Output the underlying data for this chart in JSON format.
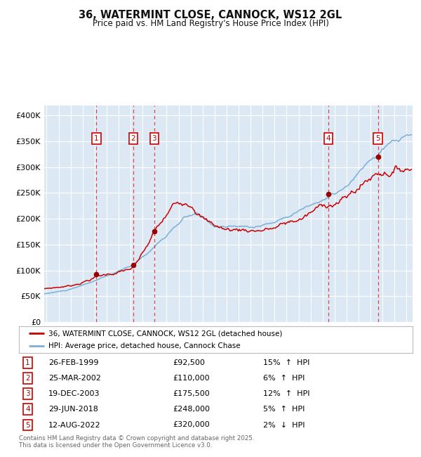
{
  "title_line1": "36, WATERMINT CLOSE, CANNOCK, WS12 2GL",
  "title_line2": "Price paid vs. HM Land Registry's House Price Index (HPI)",
  "ylim": [
    0,
    420000
  ],
  "yticks": [
    0,
    50000,
    100000,
    150000,
    200000,
    250000,
    300000,
    350000,
    400000
  ],
  "ytick_labels": [
    "£0",
    "£50K",
    "£100K",
    "£150K",
    "£200K",
    "£250K",
    "£300K",
    "£350K",
    "£400K"
  ],
  "xlim_start": 1994.8,
  "xlim_end": 2025.5,
  "plot_bg_color": "#dce9f5",
  "fig_bg_color": "#ffffff",
  "grid_color": "#ffffff",
  "red_line_color": "#cc0000",
  "blue_line_color": "#7bafd4",
  "dashed_line_color": "#dd3333",
  "sale_marker_color": "#990000",
  "transactions": [
    {
      "num": 1,
      "date_dec": 1999.15,
      "price": 92500,
      "pct": "15%",
      "dir": "↑",
      "date_str": "26-FEB-1999"
    },
    {
      "num": 2,
      "date_dec": 2002.23,
      "price": 110000,
      "pct": "6%",
      "dir": "↑",
      "date_str": "25-MAR-2002"
    },
    {
      "num": 3,
      "date_dec": 2003.97,
      "price": 175500,
      "pct": "12%",
      "dir": "↑",
      "date_str": "19-DEC-2003"
    },
    {
      "num": 4,
      "date_dec": 2018.49,
      "price": 248000,
      "pct": "5%",
      "dir": "↑",
      "date_str": "29-JUN-2018"
    },
    {
      "num": 5,
      "date_dec": 2022.61,
      "price": 320000,
      "pct": "2%",
      "dir": "↓",
      "date_str": "12-AUG-2022"
    }
  ],
  "legend_red_label": "36, WATERMINT CLOSE, CANNOCK, WS12 2GL (detached house)",
  "legend_blue_label": "HPI: Average price, detached house, Cannock Chase",
  "footer_line1": "Contains HM Land Registry data © Crown copyright and database right 2025.",
  "footer_line2": "This data is licensed under the Open Government Licence v3.0."
}
